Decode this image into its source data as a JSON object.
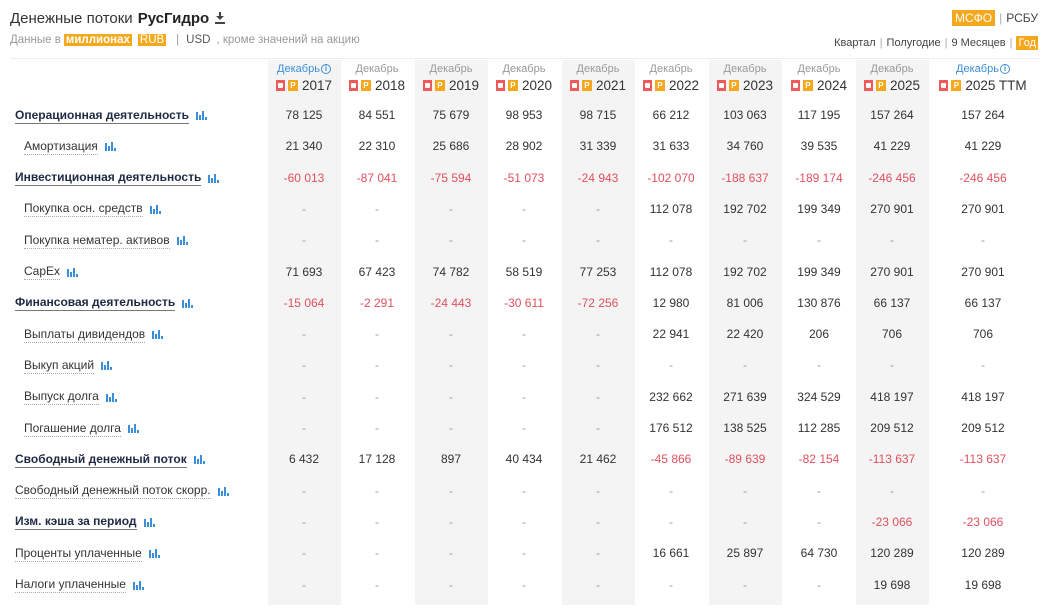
{
  "header": {
    "title_prefix": "Денежные потоки",
    "company": "РусГидро",
    "data_in": "Данные в",
    "unit": "миллионах",
    "currency_rub": "RUB",
    "currency_usd": "USD",
    "note": ", кроме значений на акцию"
  },
  "standards": {
    "active": "МСФО",
    "other": "РСБУ"
  },
  "periods": {
    "quarter": "Квартал",
    "half": "Полугодие",
    "nine": "9 Месяцев",
    "year": "Год"
  },
  "columns": [
    {
      "month": "Декабрь",
      "year": "2017",
      "info": true
    },
    {
      "month": "Декабрь",
      "year": "2018",
      "info": false
    },
    {
      "month": "Декабрь",
      "year": "2019",
      "info": false
    },
    {
      "month": "Декабрь",
      "year": "2020",
      "info": false
    },
    {
      "month": "Декабрь",
      "year": "2021",
      "info": false
    },
    {
      "month": "Декабрь",
      "year": "2022",
      "info": false
    },
    {
      "month": "Декабрь",
      "year": "2023",
      "info": false
    },
    {
      "month": "Декабрь",
      "year": "2024",
      "info": false
    },
    {
      "month": "Декабрь",
      "year": "2025",
      "info": false
    },
    {
      "month": "Декабрь",
      "year": "2025 TTM",
      "info": true
    }
  ],
  "rows": [
    {
      "label": "Операционная деятельность",
      "bold": true,
      "values": [
        "78 125",
        "84 551",
        "75 679",
        "98 953",
        "98 715",
        "66 212",
        "103 063",
        "117 195",
        "157 264",
        "157 264"
      ]
    },
    {
      "label": "Амортизация",
      "bold": false,
      "values": [
        "21 340",
        "22 310",
        "25 686",
        "28 902",
        "31 339",
        "31 633",
        "34 760",
        "39 535",
        "41 229",
        "41 229"
      ]
    },
    {
      "label": "Инвестиционная деятельность",
      "bold": true,
      "values": [
        "-60 013",
        "-87 041",
        "-75 594",
        "-51 073",
        "-24 943",
        "-102 070",
        "-188 637",
        "-189 174",
        "-246 456",
        "-246 456"
      ]
    },
    {
      "label": "Покупка осн. средств",
      "bold": false,
      "values": [
        "-",
        "-",
        "-",
        "-",
        "-",
        "112 078",
        "192 702",
        "199 349",
        "270 901",
        "270 901"
      ]
    },
    {
      "label": "Покупка нематер. активов",
      "bold": false,
      "values": [
        "-",
        "-",
        "-",
        "-",
        "-",
        "-",
        "-",
        "-",
        "-",
        "-"
      ]
    },
    {
      "label": "CapEx",
      "bold": false,
      "values": [
        "71 693",
        "67 423",
        "74 782",
        "58 519",
        "77 253",
        "112 078",
        "192 702",
        "199 349",
        "270 901",
        "270 901"
      ]
    },
    {
      "label": "Финансовая деятельность",
      "bold": true,
      "values": [
        "-15 064",
        "-2 291",
        "-24 443",
        "-30 611",
        "-72 256",
        "12 980",
        "81 006",
        "130 876",
        "66 137",
        "66 137"
      ]
    },
    {
      "label": "Выплаты дивидендов",
      "bold": false,
      "values": [
        "-",
        "-",
        "-",
        "-",
        "-",
        "22 941",
        "22 420",
        "206",
        "706",
        "706"
      ]
    },
    {
      "label": "Выкуп акций",
      "bold": false,
      "values": [
        "-",
        "-",
        "-",
        "-",
        "-",
        "-",
        "-",
        "-",
        "-",
        "-"
      ]
    },
    {
      "label": "Выпуск долга",
      "bold": false,
      "values": [
        "-",
        "-",
        "-",
        "-",
        "-",
        "232 662",
        "271 639",
        "324 529",
        "418 197",
        "418 197"
      ]
    },
    {
      "label": "Погашение долга",
      "bold": false,
      "values": [
        "-",
        "-",
        "-",
        "-",
        "-",
        "176 512",
        "138 525",
        "112 285",
        "209 512",
        "209 512"
      ]
    },
    {
      "label": "Свободный денежный поток",
      "bold": true,
      "values": [
        "6 432",
        "17 128",
        "897",
        "40 434",
        "21 462",
        "-45 866",
        "-89 639",
        "-82 154",
        "-113 637",
        "-113 637"
      ]
    },
    {
      "label": "Свободный денежный поток скорр.",
      "bold": false,
      "top": true,
      "values": [
        "-",
        "-",
        "-",
        "-",
        "-",
        "-",
        "-",
        "-",
        "-",
        "-"
      ]
    },
    {
      "label": "Изм. кэша за период",
      "bold": true,
      "values": [
        "-",
        "-",
        "-",
        "-",
        "-",
        "-",
        "-",
        "-",
        "-23 066",
        "-23 066"
      ]
    },
    {
      "label": "Проценты уплаченные",
      "bold": false,
      "top": true,
      "values": [
        "-",
        "-",
        "-",
        "-",
        "-",
        "16 661",
        "25 897",
        "64 730",
        "120 289",
        "120 289"
      ]
    },
    {
      "label": "Налоги уплаченные",
      "bold": false,
      "top": true,
      "values": [
        "-",
        "-",
        "-",
        "-",
        "-",
        "-",
        "-",
        "-",
        "19 698",
        "19 698"
      ]
    }
  ]
}
